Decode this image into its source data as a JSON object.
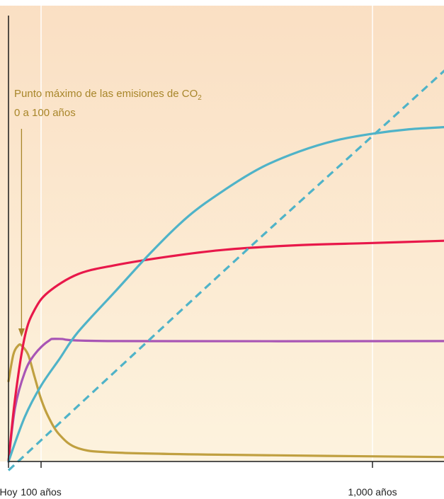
{
  "chart_data": {
    "type": "line",
    "title": "",
    "xlabel": "",
    "ylabel": "",
    "grid": false,
    "x_ticks": [
      {
        "value": 0,
        "label": "Hoy"
      },
      {
        "value": 100,
        "label": "100 años"
      },
      {
        "value": 1000,
        "label": "1,000 años"
      }
    ],
    "xlim": [
      0,
      1200
    ],
    "ylim": [
      0,
      100
    ],
    "annotation": {
      "line1": "Punto máximo de las emisiones de CO",
      "subscript": "2",
      "line2": "0 a 100 años",
      "points_to_x": 40
    },
    "series": [
      {
        "color": "#c0a040",
        "style": "solid",
        "points": [
          [
            0,
            18
          ],
          [
            15,
            24
          ],
          [
            30,
            26
          ],
          [
            40,
            26
          ],
          [
            60,
            24
          ],
          [
            80,
            19
          ],
          [
            100,
            14
          ],
          [
            120,
            10
          ],
          [
            150,
            6
          ],
          [
            200,
            3
          ],
          [
            300,
            2
          ],
          [
            600,
            1.5
          ],
          [
            1200,
            1
          ]
        ]
      },
      {
        "color": "#a855b5",
        "style": "solid",
        "points": [
          [
            0,
            0
          ],
          [
            20,
            12
          ],
          [
            50,
            20
          ],
          [
            80,
            24
          ],
          [
            120,
            27
          ],
          [
            150,
            27.5
          ],
          [
            300,
            27
          ],
          [
            1200,
            27
          ]
        ]
      },
      {
        "color": "#e8184a",
        "style": "solid",
        "points": [
          [
            0,
            0
          ],
          [
            20,
            14
          ],
          [
            50,
            28
          ],
          [
            80,
            34
          ],
          [
            120,
            38
          ],
          [
            200,
            42
          ],
          [
            300,
            44
          ],
          [
            450,
            46
          ],
          [
            600,
            47.5
          ],
          [
            800,
            48.5
          ],
          [
            1000,
            49
          ],
          [
            1200,
            49.5
          ]
        ]
      },
      {
        "color": "#4fb3c8",
        "style": "solid",
        "points": [
          [
            0,
            0
          ],
          [
            50,
            10
          ],
          [
            100,
            17
          ],
          [
            150,
            23
          ],
          [
            200,
            29
          ],
          [
            300,
            38
          ],
          [
            400,
            47
          ],
          [
            500,
            55
          ],
          [
            600,
            61
          ],
          [
            700,
            66
          ],
          [
            800,
            69.5
          ],
          [
            900,
            72
          ],
          [
            1000,
            73.5
          ],
          [
            1100,
            74.5
          ],
          [
            1200,
            75
          ]
        ]
      },
      {
        "color": "#4fb3c8",
        "style": "dashed",
        "points": [
          [
            0,
            -2
          ],
          [
            600,
            43
          ],
          [
            1000,
            73
          ],
          [
            1200,
            88
          ]
        ]
      }
    ]
  }
}
